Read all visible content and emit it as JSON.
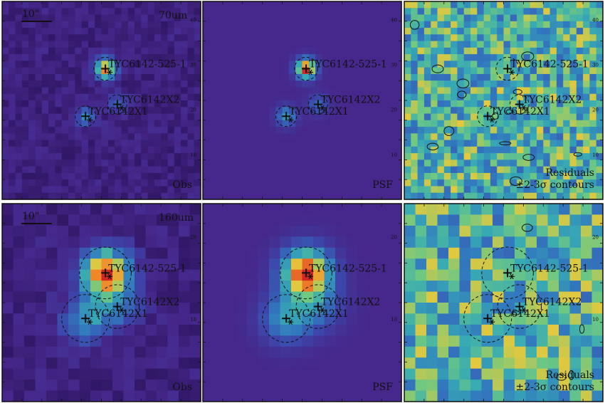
{
  "figure": {
    "rows": [
      {
        "band_label": "70um",
        "scalebar_label": "10\"",
        "ticks_right": [
          "10",
          "20",
          "30",
          "40"
        ],
        "panels": [
          {
            "kind": "obs",
            "label_lines": [
              "Obs"
            ]
          },
          {
            "kind": "psf",
            "label_lines": [
              "PSF"
            ]
          },
          {
            "kind": "residual",
            "label_lines": [
              "Residuals",
              "±2-3σ contours"
            ]
          }
        ]
      },
      {
        "band_label": "160um",
        "scalebar_label": "10\"",
        "ticks_right": [
          "10",
          "20"
        ],
        "panels": [
          {
            "kind": "obs",
            "label_lines": [
              "Obs"
            ]
          },
          {
            "kind": "psf",
            "label_lines": [
              "PSF"
            ]
          },
          {
            "kind": "residual",
            "label_lines": [
              "Residuals",
              "±2-3σ contours"
            ]
          }
        ]
      }
    ],
    "sources": [
      {
        "name": "TYC6142-525-1"
      },
      {
        "name": "TYC6142X2"
      },
      {
        "name": "TYC6142X1"
      }
    ],
    "colors": {
      "background_obs": "#3b1f7a",
      "background_psf": "#3a2c8a",
      "residual_mid": "#3f9aa4",
      "peak": "#d23a2a",
      "marker": "#111111"
    }
  }
}
